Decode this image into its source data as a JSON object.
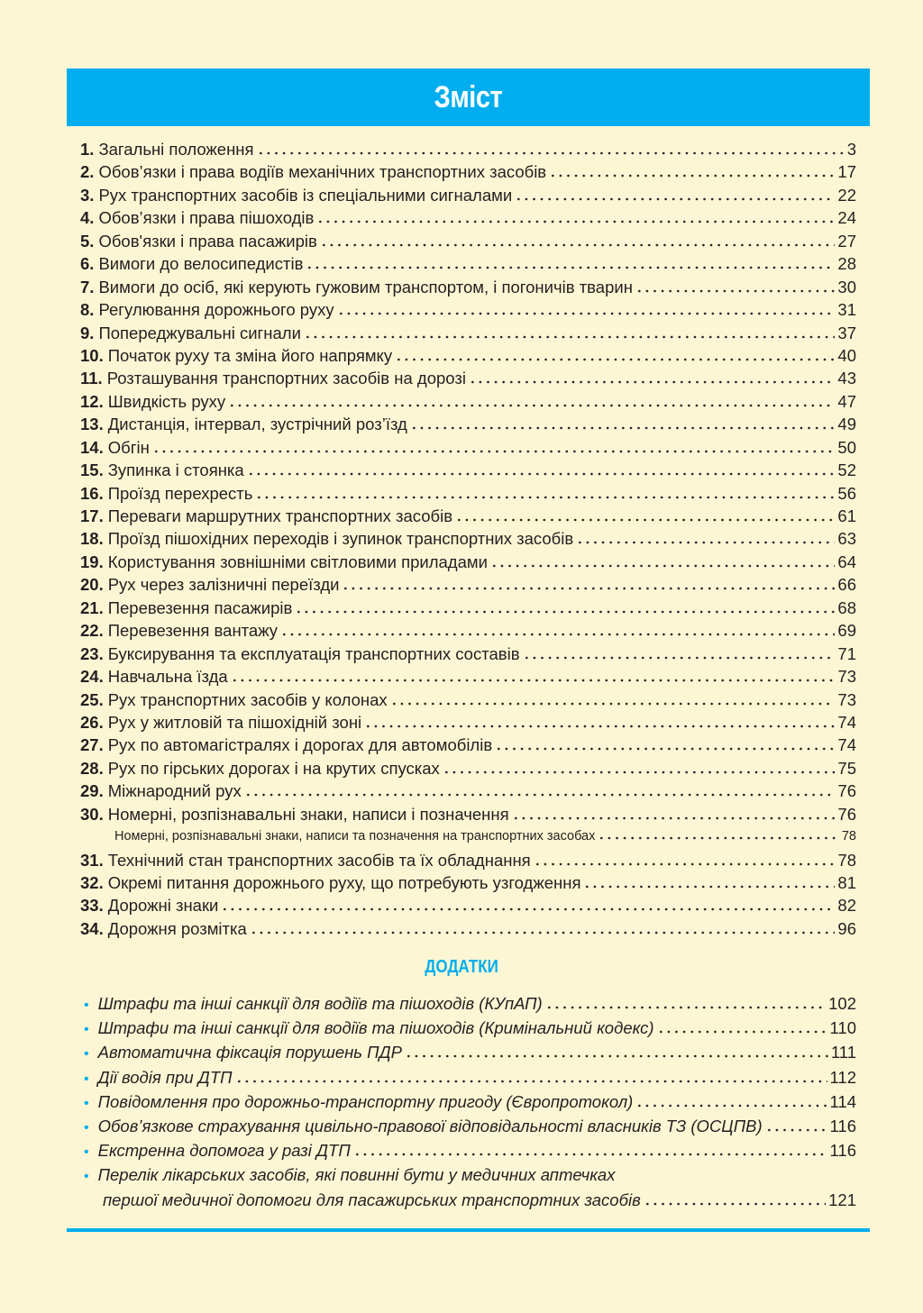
{
  "title": "Зміст",
  "accent_color": "#00aeef",
  "entries": [
    {
      "num": "1.",
      "text": "Загальні положення",
      "page": "3"
    },
    {
      "num": "2.",
      "text": "Обов’язки і права водіїв механічних транспортних засобів",
      "page": "17"
    },
    {
      "num": "3.",
      "text": "Рух транспортних засобів із спеціальними сигналами",
      "page": "22"
    },
    {
      "num": "4.",
      "text": "Обов’язки і права пішоходів",
      "page": "24"
    },
    {
      "num": "5.",
      "text": "Обов'язки і права пасажирів",
      "page": "27"
    },
    {
      "num": "6.",
      "text": "Вимоги до велосипедистів",
      "page": "28"
    },
    {
      "num": "7.",
      "text": "Вимоги до осіб, які керують гужовим транспортом, і погоничів тварин",
      "page": "30"
    },
    {
      "num": "8.",
      "text": "Регулювання дорожнього руху",
      "page": "31"
    },
    {
      "num": "9.",
      "text": "Попереджувальні сигнали",
      "page": "37"
    },
    {
      "num": "10.",
      "text": "Початок руху та зміна його напрямку",
      "page": "40"
    },
    {
      "num": "11.",
      "text": "Розташування транспортних засобів на дорозі",
      "page": "43"
    },
    {
      "num": "12.",
      "text": "Швидкість руху",
      "page": "47"
    },
    {
      "num": "13.",
      "text": "Дистанція, інтервал, зустрічний роз’їзд",
      "page": "49"
    },
    {
      "num": "14.",
      "text": "Обгін",
      "page": "50"
    },
    {
      "num": "15.",
      "text": "Зупинка і стоянка",
      "page": "52"
    },
    {
      "num": "16.",
      "text": "Проїзд перехресть",
      "page": "56"
    },
    {
      "num": "17.",
      "text": "Переваги маршрутних транспортних засобів",
      "page": "61"
    },
    {
      "num": "18.",
      "text": "Проїзд пішохідних переходів і зупинок транспортних засобів",
      "page": "63"
    },
    {
      "num": "19.",
      "text": "Користування зовнішніми світловими приладами",
      "page": "64"
    },
    {
      "num": "20.",
      "text": "Рух через залізничні переїзди",
      "page": "66"
    },
    {
      "num": "21.",
      "text": "Перевезення пасажирів",
      "page": "68"
    },
    {
      "num": "22.",
      "text": "Перевезення вантажу",
      "page": "69"
    },
    {
      "num": "23.",
      "text": "Буксирування та експлуатація транспортних составів",
      "page": "71"
    },
    {
      "num": "24.",
      "text": "Навчальна їзда",
      "page": "73"
    },
    {
      "num": "25.",
      "text": "Рух транспортних засобів у колонах",
      "page": "73"
    },
    {
      "num": "26.",
      "text": "Рух у житловій та пішохідній зоні",
      "page": "74"
    },
    {
      "num": "27.",
      "text": "Рух по автомагістралях і дорогах для автомобілів",
      "page": "74"
    },
    {
      "num": "28.",
      "text": "Рух по гірських дорогах і на крутих спусках",
      "page": "75"
    },
    {
      "num": "29.",
      "text": "Міжнародний рух",
      "page": "76"
    },
    {
      "num": "30.",
      "text": "Номерні, розпізнавальні знаки, написи і позначення",
      "page": "76"
    },
    {
      "num": "",
      "text": "Номерні, розпізнавальні знаки, написи та позначення на транспортних засобах",
      "page": "78",
      "sub": true
    },
    {
      "num": "31.",
      "text": "Технічний стан транспортних засобів та їх обладнання",
      "page": "78"
    },
    {
      "num": "32.",
      "text": "Окремі питання дорожнього руху, що потребують узгодження",
      "page": "81"
    },
    {
      "num": "33.",
      "text": "Дорожні знаки",
      "page": "82"
    },
    {
      "num": "34.",
      "text": "Дорожня розмітка",
      "page": "96"
    }
  ],
  "appendix": {
    "title": "ДОДАТКИ",
    "items": [
      {
        "text": "Штрафи та інші санкції для водіїв та пішоходів (КУпАП)",
        "page": "102"
      },
      {
        "text": "Штрафи та інші санкції для водіїв та пішоходів (Кримінальний кодекс)",
        "page": "110"
      },
      {
        "text": "Автоматична фіксація порушень ПДР",
        "page": "111"
      },
      {
        "text": "Дії водія при ДТП",
        "page": "112"
      },
      {
        "text": "Повідомлення про дорожньо-транспортну пригоду (Європротокол)",
        "page": "114"
      },
      {
        "text": "Обов’язкове страхування цивільно-правової відповідальності власників ТЗ (ОСЦПВ)",
        "page": "116"
      },
      {
        "text": "Екстренна допомога у разі ДТП",
        "page": "116"
      },
      {
        "text": "Перелік лікарських засобів, які повинні бути у медичних аптечках",
        "text2": "першої медичної допомоги для пасажирських транспортних засобів",
        "page": "121"
      }
    ]
  }
}
